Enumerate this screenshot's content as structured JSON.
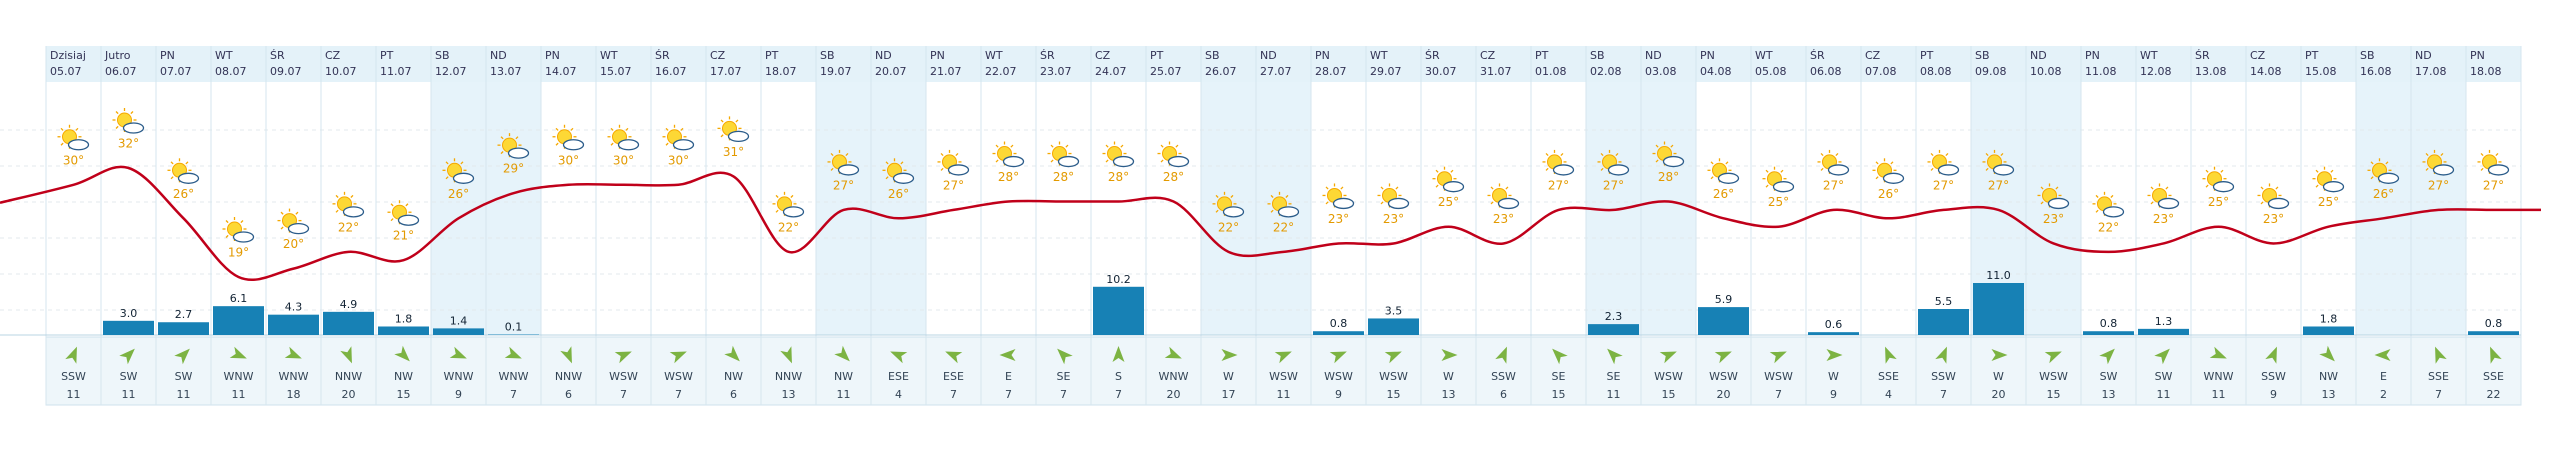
{
  "chart_data": {
    "type": "forecast",
    "categories": [
      "Dzisiaj",
      "Jutro",
      "PN",
      "WT",
      "ŚR",
      "CZ",
      "PT",
      "SB",
      "ND",
      "PN",
      "WT",
      "ŚR",
      "CZ",
      "PT",
      "SB",
      "ND",
      "PN",
      "WT",
      "ŚR",
      "CZ",
      "PT",
      "SB",
      "ND",
      "PN",
      "WT",
      "ŚR",
      "CZ",
      "PT",
      "SB",
      "ND",
      "PN",
      "WT",
      "ŚR",
      "CZ",
      "PT",
      "SB",
      "ND",
      "PN",
      "WT",
      "ŚR",
      "CZ",
      "PT",
      "SB",
      "ND",
      "PN"
    ],
    "dates": [
      "05.07",
      "06.07",
      "07.07",
      "08.07",
      "09.07",
      "10.07",
      "11.07",
      "12.07",
      "13.07",
      "14.07",
      "15.07",
      "16.07",
      "17.07",
      "18.07",
      "19.07",
      "20.07",
      "21.07",
      "22.07",
      "23.07",
      "24.07",
      "25.07",
      "26.07",
      "27.07",
      "28.07",
      "29.07",
      "30.07",
      "31.07",
      "01.08",
      "02.08",
      "03.08",
      "04.08",
      "05.08",
      "06.08",
      "07.08",
      "08.08",
      "09.08",
      "10.08",
      "11.08",
      "12.08",
      "13.08",
      "14.08",
      "15.08",
      "16.08",
      "17.08",
      "18.08"
    ],
    "temperature": {
      "color": "#c0001a",
      "values": [
        30,
        32,
        26,
        19,
        20,
        22,
        21,
        26,
        29,
        30,
        30,
        30,
        31,
        22,
        27,
        26,
        27,
        28,
        28,
        28,
        28,
        22,
        22,
        23,
        23,
        25,
        23,
        27,
        27,
        28,
        26,
        25,
        27,
        26,
        27,
        27,
        23,
        22,
        23,
        25,
        23,
        25,
        26,
        27,
        27
      ],
      "value_labels": [
        "30°",
        "32°",
        "26°",
        "19°",
        "20°",
        "22°",
        "21°",
        "26°",
        "29°",
        "30°",
        "30°",
        "30°",
        "31°",
        "22°",
        "27°",
        "26°",
        "27°",
        "28°",
        "28°",
        "28°",
        "28°",
        "22°",
        "22°",
        "23°",
        "23°",
        "25°",
        "23°",
        "27°",
        "27°",
        "28°",
        "26°",
        "25°",
        "27°",
        "26°",
        "27°",
        "27°",
        "23°",
        "22°",
        "23°",
        "25°",
        "23°",
        "25°",
        "26°",
        "27°",
        "27°"
      ]
    },
    "precipitation": {
      "color": "#1781b5",
      "values": [
        null,
        3.0,
        2.7,
        6.1,
        4.3,
        4.9,
        1.8,
        1.4,
        0.1,
        null,
        null,
        null,
        null,
        null,
        null,
        null,
        null,
        null,
        null,
        10.2,
        null,
        null,
        null,
        0.8,
        3.5,
        null,
        null,
        null,
        2.3,
        null,
        5.9,
        null,
        0.6,
        null,
        5.5,
        11.0,
        null,
        0.8,
        1.3,
        null,
        null,
        1.8,
        null,
        null,
        0.8
      ],
      "value_labels": [
        null,
        "3.0",
        "2.7",
        "6.1",
        "4.3",
        "4.9",
        "1.8",
        "1.4",
        "0.1",
        null,
        null,
        null,
        null,
        null,
        null,
        null,
        null,
        null,
        null,
        "10.2",
        null,
        null,
        null,
        "0.8",
        "3.5",
        null,
        null,
        null,
        "2.3",
        null,
        "5.9",
        null,
        "0.6",
        null,
        "5.5",
        "11.0",
        null,
        "0.8",
        "1.3",
        null,
        null,
        "1.8",
        null,
        null,
        "0.8"
      ]
    },
    "wind": {
      "color": "#7cb342",
      "directions": [
        "SSW",
        "SW",
        "SW",
        "WNW",
        "WNW",
        "NNW",
        "NW",
        "WNW",
        "WNW",
        "NNW",
        "WSW",
        "WSW",
        "NW",
        "NNW",
        "NW",
        "ESE",
        "ESE",
        "E",
        "SE",
        "S",
        "WNW",
        "W",
        "WSW",
        "WSW",
        "WSW",
        "W",
        "SSW",
        "SE",
        "SE",
        "WSW",
        "WSW",
        "WSW",
        "W",
        "SSE",
        "SSW",
        "W",
        "WSW",
        "SW",
        "SW",
        "WNW",
        "SSW",
        "NW",
        "E",
        "SSE",
        "SSE"
      ],
      "speeds": [
        11,
        11,
        11,
        11,
        18,
        20,
        15,
        9,
        7,
        6,
        7,
        7,
        6,
        13,
        11,
        4,
        7,
        7,
        7,
        7,
        20,
        17,
        11,
        9,
        15,
        13,
        6,
        15,
        11,
        15,
        20,
        7,
        9,
        4,
        7,
        20,
        15,
        13,
        11,
        11,
        9,
        13,
        2,
        7,
        22
      ]
    }
  }
}
